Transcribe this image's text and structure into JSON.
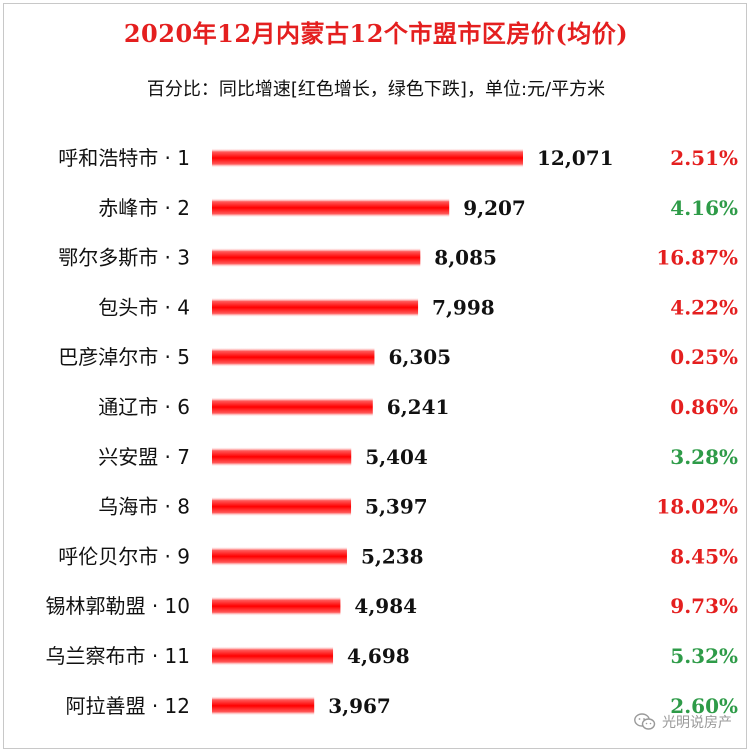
{
  "colors": {
    "title": "#e41f1f",
    "bar": "#ff0000",
    "increase": "#e41f1f",
    "decrease": "#2e9b48"
  },
  "watermark": {
    "text": "光明说房产",
    "icon": "wechat-icon"
  },
  "chart_data": {
    "type": "bar",
    "orientation": "horizontal",
    "title": "2020年12月内蒙古12个市盟市区房价(均价)",
    "subtitle": "百分比：同比增速[红色增长，绿色下跌]，单位:元/平方米",
    "categories": [
      "呼和浩特市 · 1",
      "赤峰市 · 2",
      "鄂尔多斯市 · 3",
      "包头市 · 4",
      "巴彦淖尔市 · 5",
      "通辽市 · 6",
      "兴安盟 · 7",
      "乌海市 · 8",
      "呼伦贝尔市 · 9",
      "锡林郭勒盟 · 10",
      "乌兰察布市 · 11",
      "阿拉善盟 · 12"
    ],
    "values": [
      12071,
      9207,
      8085,
      7998,
      6305,
      6241,
      5404,
      5397,
      5238,
      4984,
      4698,
      3967
    ],
    "value_labels": [
      "12,071",
      "9,207",
      "8,085",
      "7,998",
      "6,305",
      "6,241",
      "5,404",
      "5,397",
      "5,238",
      "4,984",
      "4,698",
      "3,967"
    ],
    "yoy_growth": [
      "2.51%",
      "4.16%",
      "16.87%",
      "4.22%",
      "0.25%",
      "0.86%",
      "3.28%",
      "18.02%",
      "8.45%",
      "9.73%",
      "5.32%",
      "2.60%"
    ],
    "yoy_color": [
      "increase",
      "decrease",
      "increase",
      "increase",
      "increase",
      "increase",
      "decrease",
      "increase",
      "increase",
      "increase",
      "decrease",
      "decrease"
    ],
    "xlim": [
      0,
      12071
    ],
    "grid": false,
    "legend": "none"
  }
}
